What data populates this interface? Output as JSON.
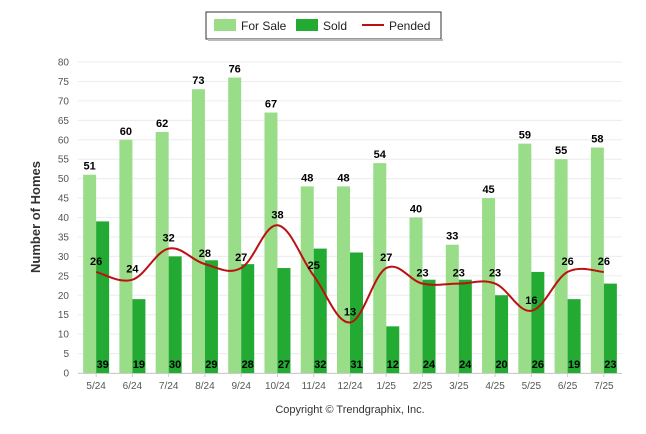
{
  "chart_data": {
    "type": "bar",
    "categories": [
      "5/24",
      "6/24",
      "7/24",
      "8/24",
      "9/24",
      "10/24",
      "11/24",
      "12/24",
      "1/25",
      "2/25",
      "3/25",
      "4/25",
      "5/25",
      "6/25",
      "7/25"
    ],
    "series": [
      {
        "name": "For Sale",
        "type": "bar",
        "color": "#99dd88",
        "values": [
          51,
          60,
          62,
          73,
          76,
          67,
          48,
          48,
          54,
          40,
          33,
          45,
          59,
          55,
          58
        ]
      },
      {
        "name": "Sold",
        "type": "bar",
        "color": "#22aa33",
        "values": [
          39,
          19,
          30,
          29,
          28,
          27,
          32,
          31,
          12,
          24,
          24,
          20,
          26,
          19,
          23
        ]
      },
      {
        "name": "Pended",
        "type": "line",
        "color": "#bb1111",
        "values": [
          26,
          24,
          32,
          28,
          27,
          38,
          25,
          13,
          27,
          23,
          23,
          23,
          16,
          26,
          26
        ]
      }
    ],
    "title": "",
    "xlabel": "",
    "ylabel": "Number of Homes",
    "ylim": [
      0,
      80
    ],
    "yticks": [
      0,
      5,
      10,
      15,
      20,
      25,
      30,
      35,
      40,
      45,
      50,
      55,
      60,
      65,
      70,
      75,
      80
    ],
    "grid": true,
    "legend_position": "top-center"
  },
  "footer": "Copyright © Trendgraphix, Inc."
}
